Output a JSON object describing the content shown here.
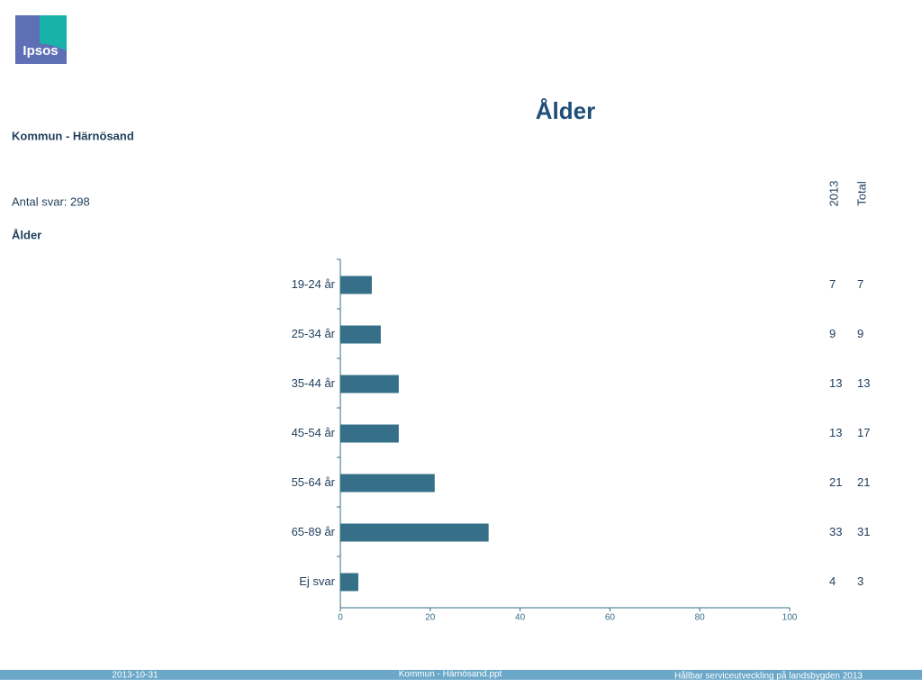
{
  "header": {
    "logo": "Ipsos",
    "subtitle": "Kommun - Härnösand",
    "respondents": "Antal svar: 298",
    "question": "Ålder"
  },
  "footer": {
    "date": "2013-10-31",
    "file": "Kommun - Härnösand.ppt",
    "project": "Hållbar serviceutveckling på landsbygden 2013"
  },
  "chart_data": {
    "type": "bar",
    "orientation": "horizontal",
    "title": "Ålder",
    "categories": [
      "19-24 år",
      "25-34 år",
      "35-44 år",
      "45-54 år",
      "55-64 år",
      "65-89 år",
      "Ej svar"
    ],
    "series": [
      {
        "name": "2013",
        "color": "#356f88",
        "values": [
          7,
          9,
          13,
          13,
          21,
          33,
          4
        ]
      },
      {
        "name": "Total",
        "values": [
          7,
          9,
          13,
          17,
          21,
          31,
          3
        ]
      }
    ],
    "xlim": [
      0,
      100
    ],
    "xticks": [
      0,
      20,
      40,
      60,
      80,
      100
    ]
  }
}
